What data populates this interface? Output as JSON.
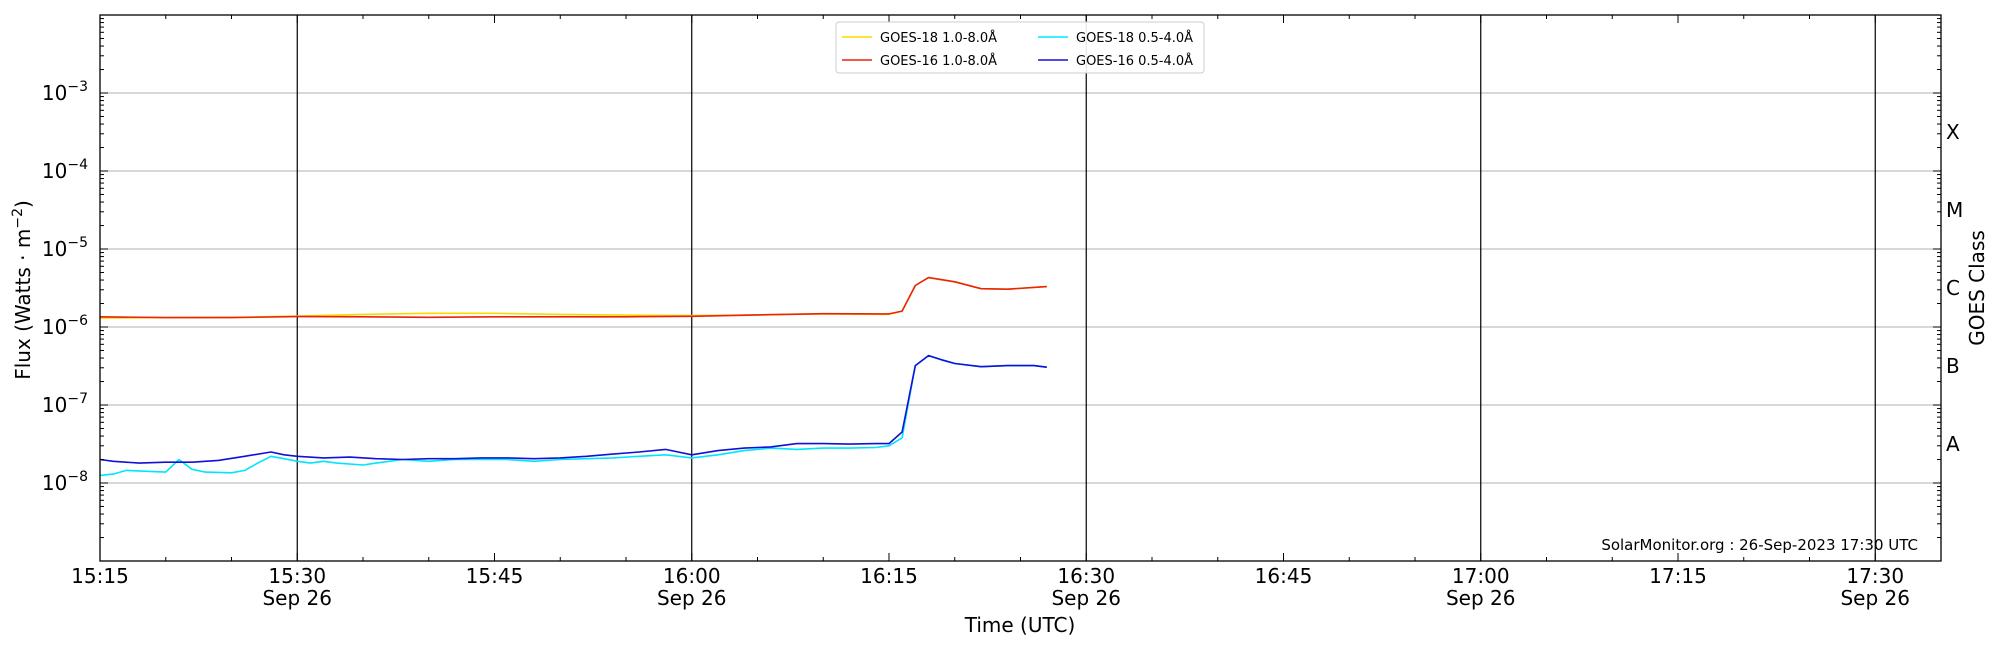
{
  "chart_data": {
    "type": "line",
    "title": "",
    "xlabel": "Time (UTC)",
    "ylabel_main": "Flux (Watts · m",
    "ylabel_sup": "−2",
    "ylabel_close": ")",
    "y_scale": "log",
    "ylim": [
      1e-09,
      0.01
    ],
    "xlim": [
      "15:15",
      "17:35"
    ],
    "grid": "horizontal at decades",
    "x_ticks": [
      {
        "time": "15:15",
        "label": "15:15",
        "sublabel": ""
      },
      {
        "time": "15:30",
        "label": "15:30",
        "sublabel": "Sep 26"
      },
      {
        "time": "15:45",
        "label": "15:45",
        "sublabel": ""
      },
      {
        "time": "16:00",
        "label": "16:00",
        "sublabel": "Sep 26"
      },
      {
        "time": "16:15",
        "label": "16:15",
        "sublabel": ""
      },
      {
        "time": "16:30",
        "label": "16:30",
        "sublabel": "Sep 26"
      },
      {
        "time": "16:45",
        "label": "16:45",
        "sublabel": ""
      },
      {
        "time": "17:00",
        "label": "17:00",
        "sublabel": "Sep 26"
      },
      {
        "time": "17:15",
        "label": "17:15",
        "sublabel": ""
      },
      {
        "time": "17:30",
        "label": "17:30",
        "sublabel": "Sep 26"
      }
    ],
    "vlines": [
      "15:30",
      "16:00",
      "16:30",
      "17:00",
      "17:30"
    ],
    "y_ticks": [
      {
        "value": 1e-08,
        "base": "10",
        "exp": "−8"
      },
      {
        "value": 1e-07,
        "base": "10",
        "exp": "−7"
      },
      {
        "value": 1e-06,
        "base": "10",
        "exp": "−6"
      },
      {
        "value": 1e-05,
        "base": "10",
        "exp": "−5"
      },
      {
        "value": 0.0001,
        "base": "10",
        "exp": "−4"
      },
      {
        "value": 0.001,
        "base": "10",
        "exp": "−3"
      }
    ],
    "goes_class_axis": {
      "label": "GOES Class",
      "classes": [
        {
          "name": "A",
          "value": 3.16e-08
        },
        {
          "name": "B",
          "value": 3.16e-07
        },
        {
          "name": "C",
          "value": 3.16e-06
        },
        {
          "name": "M",
          "value": 3.16e-05
        },
        {
          "name": "X",
          "value": 0.000316
        }
      ]
    },
    "legend": {
      "placement": "top-center",
      "columns": 2
    },
    "annotation": "SolarMonitor.org : 26-Sep-2023 17:30 UTC",
    "series": [
      {
        "name": "GOES-18 1.0-8.0Å",
        "color": "#ffd700",
        "x": [
          "15:15",
          "15:20",
          "15:25",
          "15:30",
          "15:35",
          "15:40",
          "15:45",
          "15:50",
          "15:55",
          "16:00",
          "16:05",
          "16:10",
          "16:15",
          "16:16",
          "16:17",
          "16:18",
          "16:20",
          "16:22",
          "16:24",
          "16:27"
        ],
        "y": [
          1.3e-06,
          1.32e-06,
          1.33e-06,
          1.38e-06,
          1.45e-06,
          1.5e-06,
          1.5e-06,
          1.45e-06,
          1.42e-06,
          1.4e-06,
          1.43e-06,
          1.47e-06,
          1.45e-06,
          1.6e-06,
          3.4e-06,
          4.3e-06,
          3.8e-06,
          3.1e-06,
          3.05e-06,
          3.3e-06
        ]
      },
      {
        "name": "GOES-16 1.0-8.0Å",
        "color": "#e8240b",
        "x": [
          "15:15",
          "15:20",
          "15:25",
          "15:30",
          "15:35",
          "15:40",
          "15:45",
          "15:50",
          "15:55",
          "16:00",
          "16:05",
          "16:10",
          "16:15",
          "16:16",
          "16:17",
          "16:18",
          "16:20",
          "16:22",
          "16:24",
          "16:27"
        ],
        "y": [
          1.35e-06,
          1.32e-06,
          1.32e-06,
          1.36e-06,
          1.35e-06,
          1.33e-06,
          1.35e-06,
          1.35e-06,
          1.35e-06,
          1.37e-06,
          1.43e-06,
          1.48e-06,
          1.47e-06,
          1.6e-06,
          3.4e-06,
          4.3e-06,
          3.8e-06,
          3.1e-06,
          3.05e-06,
          3.3e-06
        ]
      },
      {
        "name": "GOES-18 0.5-4.0Å",
        "color": "#00e5ff",
        "x": [
          "15:15",
          "15:16",
          "15:17",
          "15:19",
          "15:20",
          "15:21",
          "15:22",
          "15:23",
          "15:25",
          "15:26",
          "15:27",
          "15:28",
          "15:29",
          "15:30",
          "15:31",
          "15:32",
          "15:33",
          "15:35",
          "15:36",
          "15:38",
          "15:40",
          "15:42",
          "15:44",
          "15:46",
          "15:48",
          "15:50",
          "15:52",
          "15:54",
          "15:56",
          "15:58",
          "16:00",
          "16:02",
          "16:04",
          "16:06",
          "16:08",
          "16:10",
          "16:12",
          "16:14",
          "16:15",
          "16:16",
          "16:17",
          "16:18",
          "16:19",
          "16:20",
          "16:22",
          "16:24",
          "16:26",
          "16:27"
        ],
        "y": [
          1.25e-08,
          1.3e-08,
          1.45e-08,
          1.4e-08,
          1.38e-08,
          2e-08,
          1.5e-08,
          1.38e-08,
          1.35e-08,
          1.45e-08,
          1.8e-08,
          2.2e-08,
          2.05e-08,
          1.9e-08,
          1.8e-08,
          1.9e-08,
          1.8e-08,
          1.7e-08,
          1.8e-08,
          2e-08,
          1.9e-08,
          2e-08,
          2e-08,
          2e-08,
          1.9e-08,
          2e-08,
          2.05e-08,
          2.1e-08,
          2.2e-08,
          2.3e-08,
          2.1e-08,
          2.3e-08,
          2.6e-08,
          2.8e-08,
          2.7e-08,
          2.8e-08,
          2.8e-08,
          2.85e-08,
          3e-08,
          3.8e-08,
          3.2e-07,
          4.3e-07,
          3.8e-07,
          3.4e-07,
          3.1e-07,
          3.2e-07,
          3.2e-07,
          3.05e-07
        ]
      },
      {
        "name": "GOES-16 0.5-4.0Å",
        "color": "#1010d8",
        "x": [
          "15:15",
          "15:16",
          "15:18",
          "15:20",
          "15:22",
          "15:24",
          "15:26",
          "15:28",
          "15:29",
          "15:30",
          "15:32",
          "15:34",
          "15:36",
          "15:38",
          "15:40",
          "15:42",
          "15:44",
          "15:46",
          "15:48",
          "15:50",
          "15:52",
          "15:54",
          "15:56",
          "15:58",
          "16:00",
          "16:02",
          "16:04",
          "16:06",
          "16:08",
          "16:10",
          "16:12",
          "16:14",
          "16:15",
          "16:16",
          "16:17",
          "16:18",
          "16:19",
          "16:20",
          "16:22",
          "16:24",
          "16:26",
          "16:27"
        ],
        "y": [
          2e-08,
          1.9e-08,
          1.8e-08,
          1.85e-08,
          1.85e-08,
          1.95e-08,
          2.2e-08,
          2.5e-08,
          2.3e-08,
          2.2e-08,
          2.1e-08,
          2.15e-08,
          2.05e-08,
          2e-08,
          2.05e-08,
          2.05e-08,
          2.1e-08,
          2.1e-08,
          2.05e-08,
          2.1e-08,
          2.2e-08,
          2.35e-08,
          2.5e-08,
          2.7e-08,
          2.3e-08,
          2.6e-08,
          2.8e-08,
          2.9e-08,
          3.2e-08,
          3.2e-08,
          3.15e-08,
          3.2e-08,
          3.2e-08,
          4.5e-08,
          3.2e-07,
          4.3e-07,
          3.8e-07,
          3.4e-07,
          3.1e-07,
          3.2e-07,
          3.2e-07,
          3.05e-07
        ]
      }
    ]
  }
}
